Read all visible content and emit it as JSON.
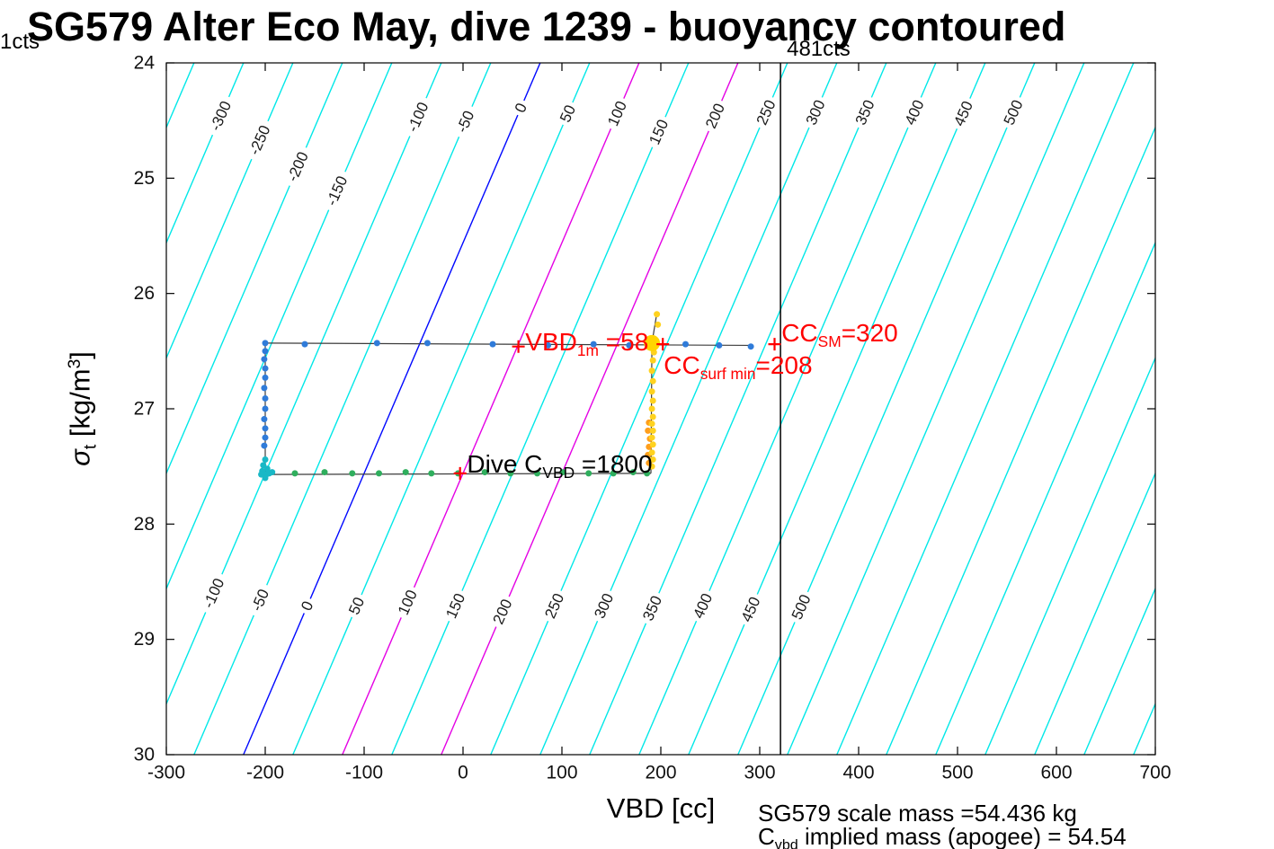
{
  "title": "SG579 Alter Eco May, dive 1239 - buoyancy contoured",
  "corner_counts_left": "1cts",
  "vline": {
    "x_cc": 321,
    "label": "481cts"
  },
  "footer": {
    "line1": "SG579 scale mass =54.436 kg",
    "line2_parts": [
      {
        "t": "C"
      },
      {
        "t": "vbd",
        "s": "sub"
      },
      {
        "t": " implied mass (apogee) = 54.54"
      }
    ]
  },
  "axes": {
    "xlabel": "VBD [cc]",
    "ylabel_parts": [
      {
        "t": "σ",
        "s": "it"
      },
      {
        "t": "t",
        "s": "sub"
      },
      {
        "t": " [kg/m"
      },
      {
        "t": "3",
        "s": "sup"
      },
      {
        "t": "]"
      }
    ],
    "x_ticks": [
      -300,
      -200,
      -100,
      0,
      100,
      200,
      300,
      400,
      500,
      600,
      700
    ],
    "y_ticks": [
      24,
      25,
      26,
      27,
      28,
      29,
      30
    ]
  },
  "chart_data": {
    "type": "scatter",
    "title": "SG579 Alter Eco May, dive 1239 - buoyancy contoured",
    "xlabel": "VBD [cc]",
    "ylabel": "sigma_t [kg/m^3]",
    "xlim": [
      -300,
      700
    ],
    "ylim": [
      24,
      30
    ],
    "y_axis_note": "density increases downward (24 at top, 30 at bottom)",
    "grid": false,
    "contours": {
      "description": "diagonal buoyancy contour lines labeled in cc",
      "level_min": -400,
      "level_max": 900,
      "level_step": 50,
      "vbd_offset_at_sigma24": 78,
      "slope_cc_per_sigma": -50,
      "default_color": "#00e8e8",
      "highlight_colors": {
        "0": "#0008ff",
        "100": "#e400e4",
        "200": "#e400e4"
      },
      "label_angle_deg": -66,
      "top_labels": [
        {
          "level": -300,
          "sigma": 24.46
        },
        {
          "level": -250,
          "sigma": 24.67
        },
        {
          "level": -200,
          "sigma": 24.9
        },
        {
          "level": -150,
          "sigma": 25.11
        },
        {
          "level": -100,
          "sigma": 24.47
        },
        {
          "level": -50,
          "sigma": 24.51
        },
        {
          "level": 0,
          "sigma": 24.39
        },
        {
          "level": 50,
          "sigma": 24.44
        },
        {
          "level": 100,
          "sigma": 24.44
        },
        {
          "level": 150,
          "sigma": 24.6
        },
        {
          "level": 200,
          "sigma": 24.46
        },
        {
          "level": 250,
          "sigma": 24.43
        },
        {
          "level": 300,
          "sigma": 24.43
        },
        {
          "level": 350,
          "sigma": 24.43
        },
        {
          "level": 400,
          "sigma": 24.43
        },
        {
          "level": 450,
          "sigma": 24.44
        },
        {
          "level": 500,
          "sigma": 24.43
        }
      ],
      "bottom_labels": [
        {
          "level": -100,
          "sigma": 28.6
        },
        {
          "level": -50,
          "sigma": 28.66
        },
        {
          "level": 0,
          "sigma": 28.71
        },
        {
          "level": 50,
          "sigma": 28.71
        },
        {
          "level": 100,
          "sigma": 28.68
        },
        {
          "level": 150,
          "sigma": 28.71
        },
        {
          "level": 200,
          "sigma": 28.76
        },
        {
          "level": 250,
          "sigma": 28.71
        },
        {
          "level": 300,
          "sigma": 28.71
        },
        {
          "level": 350,
          "sigma": 28.73
        },
        {
          "level": 400,
          "sigma": 28.71
        },
        {
          "level": 450,
          "sigma": 28.74
        },
        {
          "level": 500,
          "sigma": 28.72
        }
      ]
    },
    "vertical_line": {
      "x_cc": 321,
      "top_label": "481cts"
    },
    "track_color": "#3c3c3c",
    "track_segments": [
      [
        [
          -200,
          26.43
        ],
        [
          291,
          26.45
        ]
      ],
      [
        [
          -200,
          26.43
        ],
        [
          -200,
          27.57
        ]
      ],
      [
        [
          -200,
          27.57
        ],
        [
          190,
          27.56
        ]
      ],
      [
        [
          190,
          27.56
        ],
        [
          191,
          26.44
        ]
      ],
      [
        [
          191,
          26.43
        ],
        [
          196,
          26.17
        ]
      ]
    ],
    "series": [
      {
        "name": "surface-drift-blue",
        "color": "#2f7bd9",
        "marker_r": 3.5,
        "points": [
          [
            -200,
            26.43
          ],
          [
            -160,
            26.44
          ],
          [
            -87,
            26.43
          ],
          [
            -36,
            26.43
          ],
          [
            30,
            26.44
          ],
          [
            86,
            26.45
          ],
          [
            132,
            26.44
          ],
          [
            168,
            26.45
          ],
          [
            225,
            26.44
          ],
          [
            259,
            26.45
          ],
          [
            291,
            26.46
          ]
        ]
      },
      {
        "name": "descent-blue",
        "color": "#2f7bd9",
        "marker_r": 3.5,
        "points": [
          [
            -200,
            26.5
          ],
          [
            -201,
            26.57
          ],
          [
            -200,
            26.65
          ],
          [
            -200,
            26.73
          ],
          [
            -201,
            26.82
          ],
          [
            -200,
            26.91
          ],
          [
            -200,
            27.0
          ],
          [
            -201,
            27.09
          ],
          [
            -200,
            27.17
          ],
          [
            -200,
            27.25
          ],
          [
            -201,
            27.32
          ]
        ]
      },
      {
        "name": "bottom-teal-cluster",
        "color": "#19b8c6",
        "marker_r": 3.5,
        "points": [
          [
            -200,
            27.44
          ],
          [
            -202,
            27.49
          ],
          [
            -203,
            27.54
          ],
          [
            -199,
            27.57
          ],
          [
            -196,
            27.56
          ],
          [
            -193,
            27.55
          ],
          [
            -200,
            27.6
          ],
          [
            -198,
            27.52
          ],
          [
            -204,
            27.57
          ]
        ]
      },
      {
        "name": "bottom-drift-green",
        "color": "#2fae5d",
        "marker_r": 3.5,
        "points": [
          [
            -170,
            27.56
          ],
          [
            -140,
            27.55
          ],
          [
            -112,
            27.56
          ],
          [
            -85,
            27.56
          ],
          [
            -58,
            27.55
          ],
          [
            -32,
            27.56
          ],
          [
            -5,
            27.56
          ],
          [
            22,
            27.55
          ],
          [
            48,
            27.56
          ],
          [
            75,
            27.56
          ],
          [
            101,
            27.55
          ],
          [
            127,
            27.56
          ],
          [
            152,
            27.56
          ],
          [
            172,
            27.55
          ],
          [
            186,
            27.56
          ]
        ]
      },
      {
        "name": "climb-orange",
        "color": "#ff9e1b",
        "marker_r": 3.5,
        "points": [
          [
            188,
            27.47
          ],
          [
            187,
            27.4
          ],
          [
            188,
            27.33
          ],
          [
            189,
            27.26
          ],
          [
            187,
            27.19
          ],
          [
            188,
            27.12
          ]
        ]
      },
      {
        "name": "climb-yellow",
        "color": "#ffd21f",
        "marker_r": 3.5,
        "points": [
          [
            191,
            27.5
          ],
          [
            192,
            27.44
          ],
          [
            191,
            27.38
          ],
          [
            192,
            27.31
          ],
          [
            191,
            27.25
          ],
          [
            192,
            27.19
          ],
          [
            191,
            27.13
          ],
          [
            192,
            27.07
          ],
          [
            191,
            27.0
          ],
          [
            192,
            26.93
          ],
          [
            191,
            26.85
          ],
          [
            192,
            26.76
          ],
          [
            191,
            26.67
          ],
          [
            192,
            26.58
          ],
          [
            193,
            26.51
          ],
          [
            197,
            26.27
          ],
          [
            196,
            26.18
          ]
        ]
      },
      {
        "name": "surface-apogee-big-yellow",
        "color": "#ffd500",
        "marker_r": 9,
        "points": [
          [
            191,
            26.43
          ]
        ]
      }
    ],
    "red_plus_markers": [
      {
        "x": 56,
        "sigma": 26.46
      },
      {
        "x": 315,
        "sigma": 26.44
      },
      {
        "x": 202,
        "sigma": 26.44
      },
      {
        "x": -3,
        "sigma": 27.56
      }
    ],
    "annotations": [
      {
        "name": "vbd-1m-label",
        "color": "#ff0000",
        "x": 63,
        "sigma": 26.44,
        "parts": [
          {
            "t": "VBD"
          },
          {
            "t": "1m",
            "s": "sub"
          },
          {
            "t": " =58"
          }
        ]
      },
      {
        "name": "cc-sm-label",
        "color": "#ff0000",
        "x": 322,
        "sigma": 26.36,
        "parts": [
          {
            "t": "CC"
          },
          {
            "t": "SM",
            "s": "sub"
          },
          {
            "t": "=320"
          }
        ]
      },
      {
        "name": "cc-surf-min-label",
        "color": "#ff0000",
        "x": 203,
        "sigma": 26.64,
        "parts": [
          {
            "t": "CC"
          },
          {
            "t": "surf min",
            "s": "sub"
          },
          {
            "t": "=208"
          }
        ]
      },
      {
        "name": "dive-cvbd-label",
        "color": "#000000",
        "x": 4,
        "sigma": 27.5,
        "parts": [
          {
            "t": "Dive C"
          },
          {
            "t": "VBD",
            "s": "sub"
          },
          {
            "t": " =1800"
          }
        ]
      }
    ]
  }
}
